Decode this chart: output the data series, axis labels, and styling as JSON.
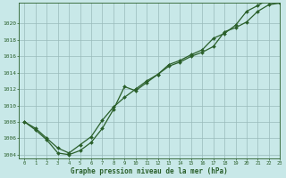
{
  "title": "Graphe pression niveau de la mer (hPa)",
  "bg_color": "#c8e8e8",
  "plot_bg_color": "#c8e8e8",
  "grid_color": "#99bbbb",
  "line_color": "#2a5f2a",
  "marker_color": "#2a5f2a",
  "xlim": [
    -0.5,
    23
  ],
  "ylim": [
    1003.5,
    1022.5
  ],
  "yticks": [
    1004,
    1006,
    1008,
    1010,
    1012,
    1014,
    1016,
    1018,
    1020
  ],
  "xticks": [
    0,
    1,
    2,
    3,
    4,
    5,
    6,
    7,
    8,
    9,
    10,
    11,
    12,
    13,
    14,
    15,
    16,
    17,
    18,
    19,
    20,
    21,
    22,
    23
  ],
  "series1_x": [
    0,
    1,
    2,
    3,
    4,
    5,
    6,
    7,
    8,
    9,
    10,
    11,
    12,
    13,
    14,
    15,
    16,
    17,
    18,
    19,
    20,
    21,
    22,
    23
  ],
  "series1_y": [
    1008.0,
    1007.2,
    1006.0,
    1004.8,
    1004.2,
    1005.2,
    1006.2,
    1008.2,
    1009.8,
    1011.0,
    1012.0,
    1013.0,
    1013.8,
    1015.0,
    1015.5,
    1016.2,
    1016.8,
    1018.2,
    1018.8,
    1019.8,
    1021.5,
    1022.2,
    1023.0,
    1022.5
  ],
  "series2_x": [
    0,
    1,
    2,
    3,
    4,
    5,
    6,
    7,
    8,
    9,
    10,
    11,
    12,
    13,
    14,
    15,
    16,
    17,
    18,
    19,
    20,
    21,
    22,
    23
  ],
  "series2_y": [
    1008.0,
    1007.0,
    1005.8,
    1004.2,
    1004.0,
    1004.5,
    1005.5,
    1007.2,
    1009.5,
    1012.3,
    1011.8,
    1012.8,
    1013.8,
    1014.8,
    1015.3,
    1016.0,
    1016.5,
    1017.2,
    1019.0,
    1019.5,
    1020.2,
    1021.5,
    1022.3,
    1022.5
  ]
}
